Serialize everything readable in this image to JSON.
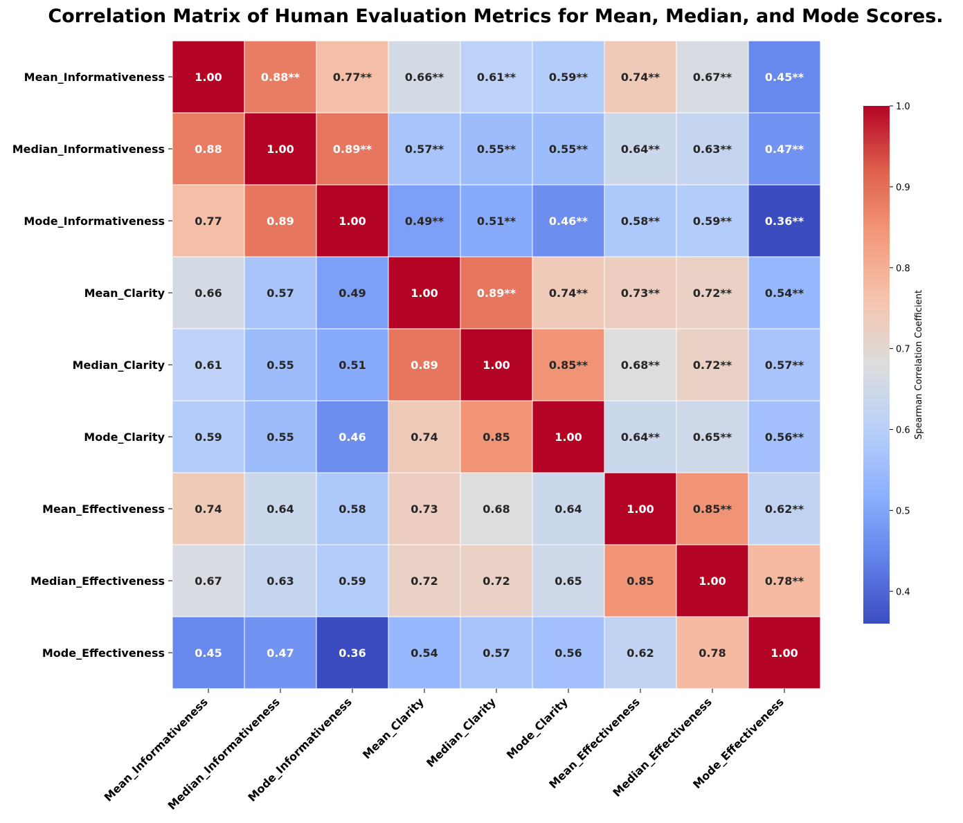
{
  "chart_data": {
    "type": "heatmap",
    "title": "Correlation Matrix of Human Evaluation Metrics for Mean, Median, and Mode Scores.",
    "rows": [
      "Mean_Informativeness",
      "Median_Informativeness",
      "Mode_Informativeness",
      "Mean_Clarity",
      "Median_Clarity",
      "Mode_Clarity",
      "Mean_Effectiveness",
      "Median_Effectiveness",
      "Mode_Effectiveness"
    ],
    "columns": [
      "Mean_Informativeness",
      "Median_Informativeness",
      "Mode_Informativeness",
      "Mean_Clarity",
      "Median_Clarity",
      "Mode_Clarity",
      "Mean_Effectiveness",
      "Median_Effectiveness",
      "Mode_Effectiveness"
    ],
    "values": [
      [
        1.0,
        0.88,
        0.77,
        0.66,
        0.61,
        0.59,
        0.74,
        0.67,
        0.45
      ],
      [
        0.88,
        1.0,
        0.89,
        0.57,
        0.55,
        0.55,
        0.64,
        0.63,
        0.47
      ],
      [
        0.77,
        0.89,
        1.0,
        0.49,
        0.51,
        0.46,
        0.58,
        0.59,
        0.36
      ],
      [
        0.66,
        0.57,
        0.49,
        1.0,
        0.89,
        0.74,
        0.73,
        0.72,
        0.54
      ],
      [
        0.61,
        0.55,
        0.51,
        0.89,
        1.0,
        0.85,
        0.68,
        0.72,
        0.57
      ],
      [
        0.59,
        0.55,
        0.46,
        0.74,
        0.85,
        1.0,
        0.64,
        0.65,
        0.56
      ],
      [
        0.74,
        0.64,
        0.58,
        0.73,
        0.68,
        0.64,
        1.0,
        0.85,
        0.62
      ],
      [
        0.67,
        0.63,
        0.59,
        0.72,
        0.72,
        0.65,
        0.85,
        1.0,
        0.78
      ],
      [
        0.45,
        0.47,
        0.36,
        0.54,
        0.57,
        0.56,
        0.62,
        0.78,
        1.0
      ]
    ],
    "cell_labels": [
      [
        "1.00",
        "0.88**",
        "0.77**",
        "0.66**",
        "0.61**",
        "0.59**",
        "0.74**",
        "0.67**",
        "0.45**"
      ],
      [
        "0.88",
        "1.00",
        "0.89**",
        "0.57**",
        "0.55**",
        "0.55**",
        "0.64**",
        "0.63**",
        "0.47**"
      ],
      [
        "0.77",
        "0.89",
        "1.00",
        "0.49**",
        "0.51**",
        "0.46**",
        "0.58**",
        "0.59**",
        "0.36**"
      ],
      [
        "0.66",
        "0.57",
        "0.49",
        "1.00",
        "0.89**",
        "0.74**",
        "0.73**",
        "0.72**",
        "0.54**"
      ],
      [
        "0.61",
        "0.55",
        "0.51",
        "0.89",
        "1.00",
        "0.85**",
        "0.68**",
        "0.72**",
        "0.57**"
      ],
      [
        "0.59",
        "0.55",
        "0.46",
        "0.74",
        "0.85",
        "1.00",
        "0.64**",
        "0.65**",
        "0.56**"
      ],
      [
        "0.74",
        "0.64",
        "0.58",
        "0.73",
        "0.68",
        "0.64",
        "1.00",
        "0.85**",
        "0.62**"
      ],
      [
        "0.67",
        "0.63",
        "0.59",
        "0.72",
        "0.72",
        "0.65",
        "0.85",
        "1.00",
        "0.78**"
      ],
      [
        "0.45",
        "0.47",
        "0.36",
        "0.54",
        "0.57",
        "0.56",
        "0.62",
        "0.78",
        "1.00"
      ]
    ],
    "colormap": "coolwarm",
    "vmin": 0.36,
    "vmax": 1.0,
    "colorbar": {
      "label": "Spearman Correlation Coefficient",
      "ticks": [
        0.4,
        0.5,
        0.6,
        0.7,
        0.8,
        0.9,
        1.0
      ],
      "tick_labels": [
        "0.4",
        "0.5",
        "0.6",
        "0.7",
        "0.8",
        "0.9",
        "1.0"
      ],
      "placement": "right"
    },
    "cell_border_color": "#ffffff"
  }
}
